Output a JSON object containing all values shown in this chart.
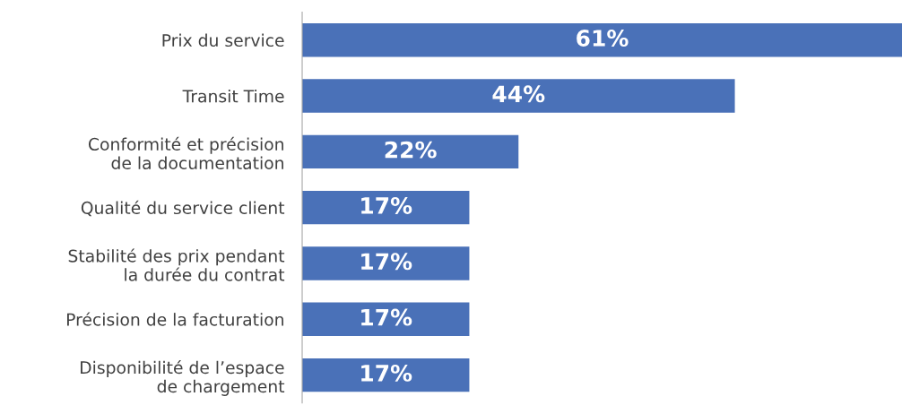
{
  "chart_data": {
    "type": "bar",
    "orientation": "horizontal",
    "categories": [
      "Prix du service",
      "Transit Time",
      "Conformité et précision\nde la documentation",
      "Qualité du service client",
      "Stabilité des prix pendant\nla durée du contrat",
      "Précision de la facturation",
      "Disponibilité de l’espace\nde chargement"
    ],
    "values": [
      61,
      44,
      22,
      17,
      17,
      17,
      17
    ],
    "value_labels": [
      "61%",
      "44%",
      "22%",
      "17%",
      "17%",
      "17%",
      "17%"
    ],
    "color": "#4a71b8",
    "grid": false,
    "legend": false
  }
}
